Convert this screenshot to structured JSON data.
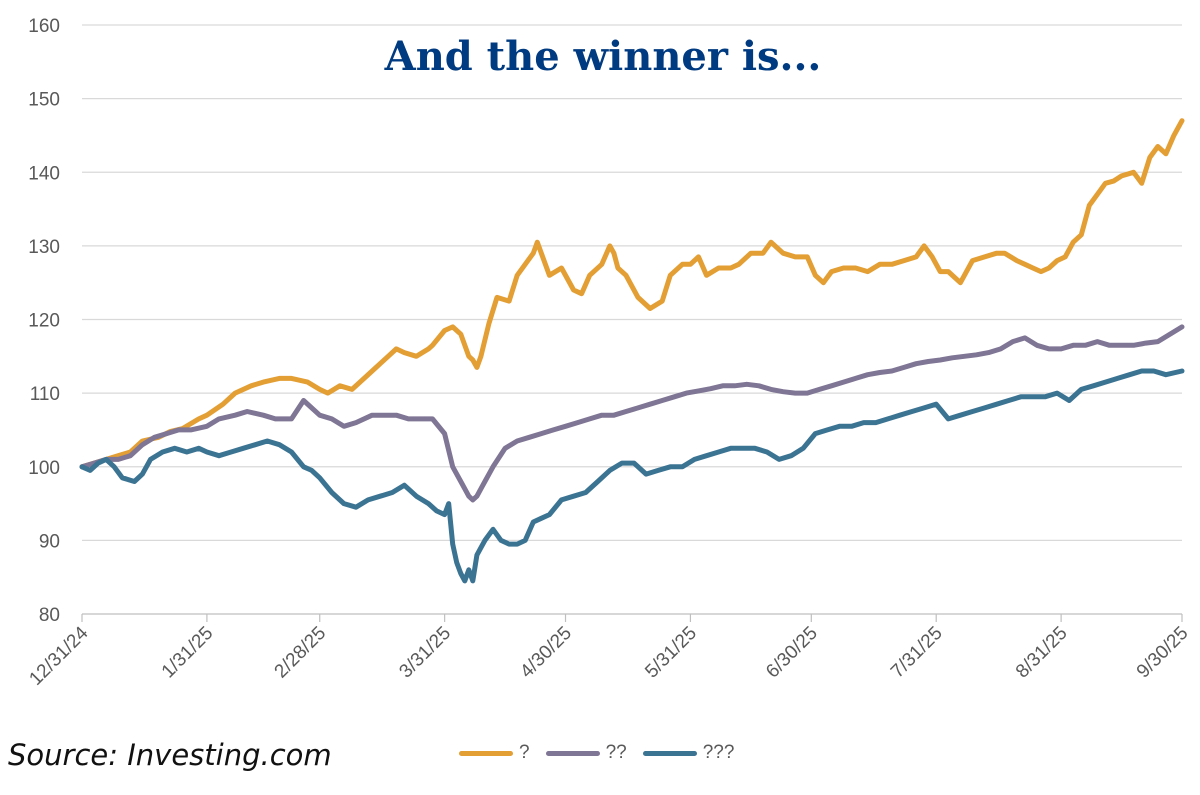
{
  "chart_data": {
    "type": "line",
    "title": "And the winner is...",
    "title_color": "#003A80",
    "ylim": [
      80,
      160
    ],
    "yticks": [
      80,
      90,
      100,
      110,
      120,
      130,
      140,
      150,
      160
    ],
    "xticks": [
      "12/31/24",
      "1/31/25",
      "2/28/25",
      "3/31/25",
      "4/30/25",
      "5/31/25",
      "6/30/25",
      "7/31/25",
      "8/31/25",
      "9/30/25"
    ],
    "x_start_day": 0,
    "x_end_day": 273,
    "tick_days": [
      0,
      31,
      59,
      90,
      120,
      151,
      181,
      212,
      243,
      273
    ],
    "gridlines": true,
    "xlabel": "",
    "ylabel": "",
    "series": [
      {
        "name": "?",
        "color": "#E39E34",
        "x": [
          0,
          3,
          6,
          9,
          12,
          15,
          19,
          22,
          25,
          29,
          31,
          35,
          38,
          42,
          45,
          49,
          52,
          56,
          59,
          61,
          64,
          67,
          70,
          73,
          76,
          78,
          80,
          83,
          86,
          87,
          90,
          92,
          94,
          96,
          97,
          98,
          99,
          101,
          103,
          106,
          108,
          110,
          112,
          113,
          116,
          119,
          122,
          124,
          126,
          129,
          131,
          132,
          133,
          135,
          138,
          141,
          144,
          146,
          149,
          151,
          153,
          155,
          158,
          161,
          163,
          166,
          169,
          171,
          174,
          177,
          180,
          182,
          184,
          186,
          189,
          192,
          195,
          198,
          201,
          204,
          207,
          209,
          211,
          213,
          215,
          218,
          221,
          224,
          227,
          229,
          232,
          234,
          236,
          238,
          240,
          242,
          244,
          246,
          248,
          250,
          252,
          254,
          256,
          258,
          261,
          263,
          265,
          267,
          269,
          271,
          273
        ],
        "values": [
          100,
          100.5,
          101,
          101.5,
          102,
          103.5,
          104,
          104.8,
          105.2,
          106.5,
          107,
          108.5,
          110,
          111,
          111.5,
          112,
          112,
          111.5,
          110.5,
          110,
          111,
          110.5,
          112,
          113.5,
          115,
          116,
          115.5,
          115,
          116,
          116.5,
          118.5,
          119,
          118,
          115,
          114.5,
          113.5,
          115,
          119.5,
          123,
          122.5,
          126,
          127.5,
          129,
          130.5,
          126,
          127,
          124,
          123.5,
          126,
          127.5,
          130,
          129,
          127,
          126,
          123,
          121.5,
          122.5,
          126,
          127.5,
          127.5,
          128.5,
          126,
          127,
          127,
          127.5,
          129,
          129,
          130.5,
          129,
          128.5,
          128.5,
          126,
          125,
          126.5,
          127,
          127,
          126.5,
          127.5,
          127.5,
          128,
          128.5,
          130,
          128.5,
          126.5,
          126.5,
          125,
          128,
          128.5,
          129,
          129,
          128,
          127.5,
          127,
          126.5,
          127,
          128,
          128.5,
          130.5,
          131.5,
          135.5,
          137,
          138.5,
          138.8,
          139.5,
          140,
          138.5,
          142,
          143.5,
          142.5,
          145,
          147
        ]
      },
      {
        "name": "??",
        "color": "#7F7594",
        "x": [
          0,
          3,
          6,
          9,
          12,
          15,
          18,
          21,
          24,
          27,
          31,
          34,
          38,
          41,
          45,
          48,
          52,
          55,
          59,
          62,
          65,
          68,
          72,
          75,
          78,
          81,
          84,
          87,
          90,
          92,
          94,
          95,
          96,
          97,
          98,
          99,
          100,
          102,
          105,
          108,
          111,
          114,
          117,
          120,
          123,
          126,
          129,
          132,
          135,
          138,
          141,
          144,
          147,
          150,
          153,
          156,
          159,
          162,
          165,
          168,
          171,
          174,
          177,
          180,
          183,
          186,
          189,
          192,
          195,
          198,
          201,
          204,
          207,
          210,
          213,
          216,
          219,
          222,
          225,
          228,
          231,
          234,
          237,
          240,
          243,
          246,
          249,
          252,
          255,
          258,
          261,
          264,
          267,
          270,
          273
        ],
        "values": [
          100,
          100.5,
          101,
          101,
          101.5,
          103,
          104,
          104.5,
          105,
          105,
          105.5,
          106.5,
          107,
          107.5,
          107,
          106.5,
          106.5,
          109,
          107,
          106.5,
          105.5,
          106,
          107,
          107,
          107,
          106.5,
          106.5,
          106.5,
          104.5,
          100,
          98,
          97,
          96,
          95.5,
          96,
          97,
          98,
          100,
          102.5,
          103.5,
          104,
          104.5,
          105,
          105.5,
          106,
          106.5,
          107,
          107,
          107.5,
          108,
          108.5,
          109,
          109.5,
          110,
          110.3,
          110.6,
          111,
          111,
          111.2,
          111,
          110.5,
          110.2,
          110,
          110,
          110.5,
          111,
          111.5,
          112,
          112.5,
          112.8,
          113,
          113.5,
          114,
          114.3,
          114.5,
          114.8,
          115,
          115.2,
          115.5,
          116,
          117,
          117.5,
          116.5,
          116,
          116,
          116.5,
          116.5,
          117,
          116.5,
          116.5,
          116.5,
          116.8,
          117,
          118,
          119
        ]
      },
      {
        "name": "???",
        "color": "#3B7393",
        "x": [
          0,
          2,
          4,
          6,
          8,
          10,
          13,
          15,
          17,
          20,
          23,
          26,
          29,
          31,
          34,
          37,
          40,
          43,
          46,
          49,
          52,
          55,
          57,
          59,
          62,
          65,
          68,
          71,
          74,
          77,
          80,
          83,
          86,
          88,
          90,
          91,
          92,
          93,
          94,
          95,
          96,
          97,
          98,
          99,
          100,
          102,
          104,
          106,
          108,
          110,
          112,
          114,
          116,
          119,
          122,
          125,
          128,
          131,
          134,
          137,
          140,
          143,
          146,
          149,
          152,
          155,
          158,
          161,
          164,
          167,
          170,
          173,
          176,
          179,
          182,
          185,
          188,
          191,
          194,
          197,
          200,
          203,
          206,
          209,
          212,
          215,
          218,
          221,
          224,
          227,
          230,
          233,
          236,
          239,
          242,
          245,
          248,
          251,
          254,
          257,
          260,
          263,
          266,
          269,
          273
        ],
        "values": [
          100,
          99.5,
          100.5,
          101,
          100,
          98.5,
          98,
          99,
          101,
          102,
          102.5,
          102,
          102.5,
          102,
          101.5,
          102,
          102.5,
          103,
          103.5,
          103,
          102,
          100,
          99.5,
          98.5,
          96.5,
          95,
          94.5,
          95.5,
          96,
          96.5,
          97.5,
          96,
          95,
          94,
          93.5,
          95,
          89.5,
          87,
          85.5,
          84.5,
          86,
          84.5,
          88,
          89,
          90,
          91.5,
          90,
          89.5,
          89.5,
          90,
          92.5,
          93,
          93.5,
          95.5,
          96,
          96.5,
          98,
          99.5,
          100.5,
          100.5,
          99,
          99.5,
          100,
          100,
          101,
          101.5,
          102,
          102.5,
          102.5,
          102.5,
          102,
          101,
          101.5,
          102.5,
          104.5,
          105,
          105.5,
          105.5,
          106,
          106,
          106.5,
          107,
          107.5,
          108,
          108.5,
          106.5,
          107,
          107.5,
          108,
          108.5,
          109,
          109.5,
          109.5,
          109.5,
          110,
          109,
          110.5,
          111,
          111.5,
          112,
          112.5,
          113,
          113,
          112.5,
          113
        ]
      }
    ]
  },
  "footer": {
    "source": "Source: Investing.com"
  }
}
